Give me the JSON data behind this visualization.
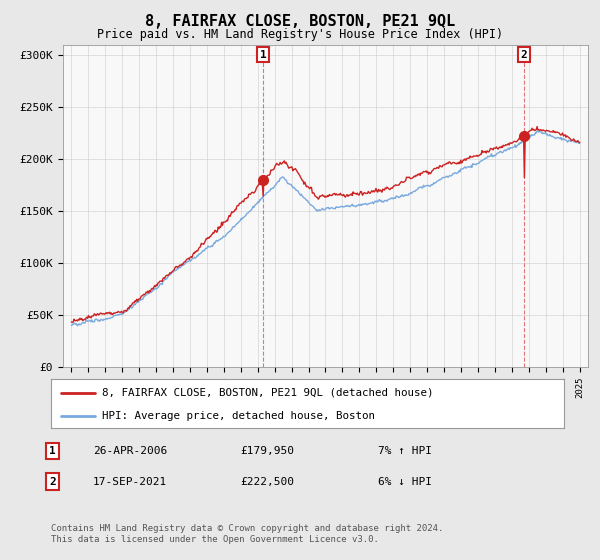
{
  "title": "8, FAIRFAX CLOSE, BOSTON, PE21 9QL",
  "subtitle": "Price paid vs. HM Land Registry's House Price Index (HPI)",
  "ylim": [
    0,
    310000
  ],
  "yticks": [
    0,
    50000,
    100000,
    150000,
    200000,
    250000,
    300000
  ],
  "ytick_labels": [
    "£0",
    "£50K",
    "£100K",
    "£150K",
    "£200K",
    "£250K",
    "£300K"
  ],
  "hpi_color": "#7aaadd",
  "price_color": "#cc2222",
  "marker_color": "#cc2222",
  "bg_color": "#e8e8e8",
  "plot_bg_color": "#f8f8f8",
  "grid_color": "#cccccc",
  "legend_label_price": "8, FAIRFAX CLOSE, BOSTON, PE21 9QL (detached house)",
  "legend_label_hpi": "HPI: Average price, detached house, Boston",
  "annotation1_date": "26-APR-2006",
  "annotation1_price": "£179,950",
  "annotation1_hpi": "7% ↑ HPI",
  "annotation2_date": "17-SEP-2021",
  "annotation2_price": "£222,500",
  "annotation2_hpi": "6% ↓ HPI",
  "footer": "Contains HM Land Registry data © Crown copyright and database right 2024.\nThis data is licensed under the Open Government Licence v3.0.",
  "sale1_year": 2006.32,
  "sale1_value": 179950,
  "sale2_year": 2021.72,
  "sale2_value": 222500,
  "xmin": 1994.5,
  "xmax": 2025.5
}
